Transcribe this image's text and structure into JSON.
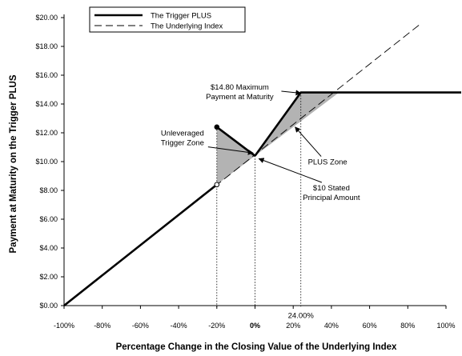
{
  "chart_data": {
    "type": "line",
    "xlabel": "Percentage Change in the Closing Value of the Underlying Index",
    "ylabel": "Payment at Maturity on the Trigger PLUS",
    "xlim": [
      -100,
      100
    ],
    "ylim": [
      0,
      20
    ],
    "x_ticks": [
      -100,
      -80,
      -60,
      -40,
      -20,
      0,
      20,
      40,
      60,
      80,
      100
    ],
    "x_tick_labels": [
      "-100%",
      "-80%",
      "-60%",
      "-40%",
      "-20%",
      "0%",
      "20%",
      "40%",
      "60%",
      "80%",
      "100%"
    ],
    "y_ticks": [
      0,
      2,
      4,
      6,
      8,
      10,
      12,
      14,
      16,
      18,
      20
    ],
    "y_tick_labels": [
      "$0.00",
      "$2.00",
      "$4.00",
      "$6.00",
      "$8.00",
      "$10.00",
      "$12.00",
      "$14.00",
      "$16.00",
      "$18.00",
      "$20.00"
    ],
    "legend_position": "top-left",
    "grid": false,
    "series": [
      {
        "name": "The Trigger PLUS",
        "style": "solid-bold",
        "color": "#000000",
        "segments": [
          [
            [
              -100,
              0
            ],
            [
              -20,
              8.4
            ]
          ],
          [
            [
              -20,
              12.4
            ],
            [
              0,
              10.4
            ]
          ],
          [
            [
              0,
              10.4
            ],
            [
              24,
              14.8
            ],
            [
              120,
              14.8
            ]
          ]
        ]
      },
      {
        "name": "The Underlying Index",
        "style": "dashed",
        "color": "#000000",
        "points": [
          [
            -100,
            0
          ],
          [
            87,
            19.6
          ]
        ]
      }
    ],
    "shaded_regions": [
      {
        "polygon": [
          [
            -20,
            12.4
          ],
          [
            0,
            10.4
          ],
          [
            -20,
            8.4
          ]
        ],
        "color": "#b3b3b3"
      },
      {
        "polygon": [
          [
            0,
            10.4
          ],
          [
            24,
            14.8
          ],
          [
            44,
            14.8
          ]
        ],
        "color": "#b3b3b3"
      }
    ],
    "reference_lines": [
      -20,
      0,
      24
    ],
    "markers": [
      {
        "x": -20,
        "y": 12.4,
        "fill": "filled"
      },
      {
        "x": -20,
        "y": 8.4,
        "fill": "open"
      }
    ],
    "annotations": [
      {
        "id": "max",
        "lines": [
          "$14.80 Maximum",
          "Payment at Maturity"
        ],
        "x": -8,
        "y": 15,
        "anchor": "middle",
        "arrow_to": [
          24,
          14.75
        ]
      },
      {
        "id": "unlev",
        "lines": [
          "Unleveraged",
          "Trigger Zone"
        ],
        "x": -38,
        "y": 11.8,
        "anchor": "middle",
        "arrow_to": [
          -1,
          10.6
        ]
      },
      {
        "id": "plus",
        "lines": [
          "PLUS Zone"
        ],
        "x": 38,
        "y": 9.8,
        "anchor": "middle",
        "arrow_to": [
          21,
          12.4
        ]
      },
      {
        "id": "stated",
        "lines": [
          "$10 Stated",
          "Principal Amount"
        ],
        "x": 40,
        "y": 8,
        "anchor": "middle",
        "arrow_to": [
          2,
          10.2
        ]
      },
      {
        "id": "pct",
        "lines": [
          "24.00%"
        ],
        "x": 24,
        "y": -0.85,
        "anchor": "middle",
        "arrow_to": null
      }
    ]
  }
}
